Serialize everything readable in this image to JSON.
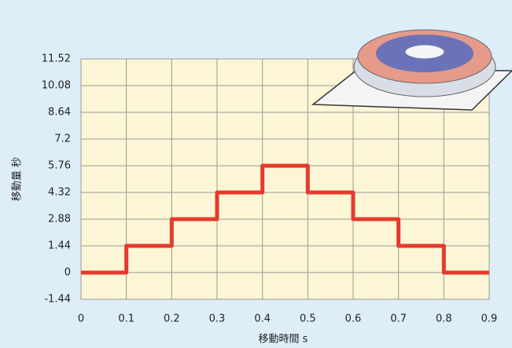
{
  "chart_data": {
    "type": "line",
    "x_label": "移動時間 s",
    "y_label": "移動量 秒",
    "x": [
      0,
      0.1,
      0.1,
      0.2,
      0.2,
      0.3,
      0.3,
      0.4,
      0.4,
      0.5,
      0.5,
      0.6,
      0.6,
      0.7,
      0.7,
      0.8,
      0.8,
      0.9
    ],
    "series": [
      {
        "color": "#e53a2c",
        "values": [
          0,
          0,
          1.44,
          1.44,
          2.88,
          2.88,
          4.32,
          4.32,
          5.76,
          5.76,
          4.32,
          4.32,
          2.88,
          2.88,
          1.44,
          1.44,
          0,
          0
        ]
      }
    ],
    "xlim": [
      0,
      0.9
    ],
    "xticks": [
      0,
      0.1,
      0.2,
      0.3,
      0.4,
      0.5,
      0.6,
      0.7,
      0.8,
      0.9
    ],
    "ylim": [
      -1.44,
      11.52
    ],
    "yticks": [
      -1.44,
      0,
      1.44,
      2.88,
      4.32,
      5.76,
      7.2,
      8.64,
      10.08,
      11.52
    ],
    "grid": true
  }
}
